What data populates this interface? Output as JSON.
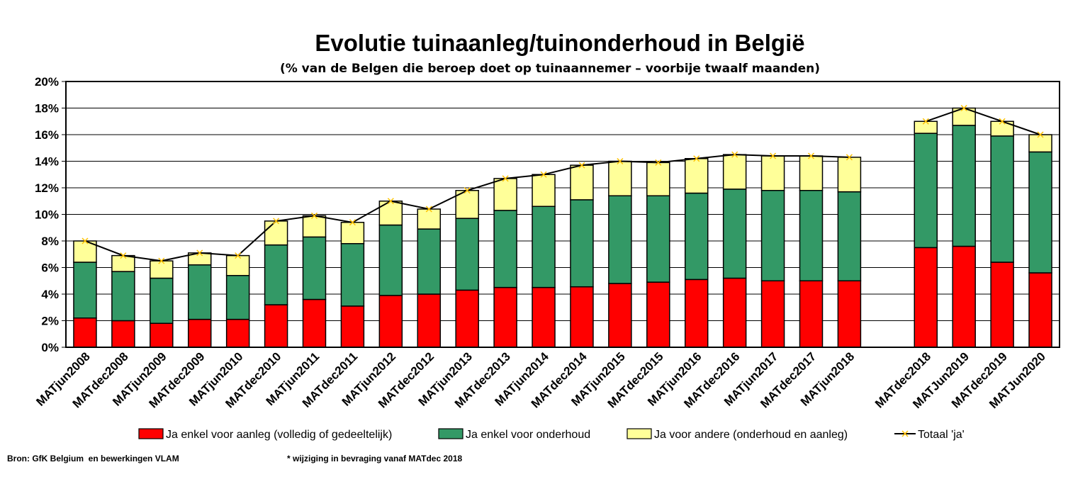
{
  "footnotes": {
    "source": "Bron: GfK Belgium  en bewerkingen VLAM",
    "note": "* wijziging in bevraging vanaf MATdec 2018"
  },
  "chart_data": {
    "type": "bar",
    "stacked": true,
    "title": "Evolutie tuinaanleg/tuinonderhoud in België",
    "subtitle": "(% van de Belgen die beroep doet op tuinaannemer – voorbije twaalf maanden)",
    "xlabel": "",
    "ylabel": "",
    "ylim": [
      0,
      20
    ],
    "yticks": [
      "0%",
      "2%",
      "4%",
      "6%",
      "8%",
      "10%",
      "12%",
      "14%",
      "16%",
      "18%",
      "20%"
    ],
    "grid": true,
    "legend_position": "bottom",
    "categories": [
      "MATjun2008",
      "MATdec2008",
      "MATjun2009",
      "MATdec2009",
      "MATjun2010",
      "MATdec2010",
      "MATjun2011",
      "MATdec2011",
      "MATjun2012",
      "MATdec2012",
      "MATjun2013",
      "MATdec2013",
      "MATjun2014",
      "MATdec2014",
      "MATjun2015",
      "MATdec2015",
      "MATjun2016",
      "MATdec2016",
      "MATjun2017",
      "MATdec2017",
      "MATjun2018",
      "MATdec2018",
      "MATJun2019",
      "MATdec2019",
      "MATJun2020"
    ],
    "series": [
      {
        "name": "Ja enkel voor aanleg (volledig of gedeeltelijk)",
        "color": "#ff0000",
        "values": [
          2.2,
          2.0,
          1.8,
          2.1,
          2.1,
          3.2,
          3.6,
          3.1,
          3.9,
          4.0,
          4.3,
          4.5,
          4.5,
          4.55,
          4.8,
          4.9,
          5.1,
          5.2,
          5.0,
          5.0,
          5.0,
          7.5,
          7.6,
          6.4,
          5.6
        ]
      },
      {
        "name": "Ja enkel voor onderhoud",
        "color": "#339966",
        "values": [
          4.2,
          3.7,
          3.4,
          4.1,
          3.3,
          4.5,
          4.7,
          4.7,
          5.3,
          4.9,
          5.4,
          5.8,
          6.1,
          6.55,
          6.6,
          6.5,
          6.5,
          6.7,
          6.8,
          6.8,
          6.7,
          8.6,
          9.1,
          9.5,
          9.1
        ]
      },
      {
        "name": "Ja voor andere (onderhoud en aanleg)",
        "color": "#ffff99",
        "values": [
          1.6,
          1.2,
          1.3,
          0.9,
          1.5,
          1.8,
          1.6,
          1.6,
          1.8,
          1.5,
          2.1,
          2.4,
          2.4,
          2.6,
          2.6,
          2.5,
          2.6,
          2.6,
          2.6,
          2.6,
          2.6,
          0.9,
          1.3,
          1.1,
          1.3
        ]
      }
    ],
    "line_series": {
      "name": "Totaal 'ja'",
      "color": "#000000",
      "marker_color": "#ffc000",
      "segments": [
        [
          0,
          20
        ],
        [
          21,
          24
        ]
      ],
      "values": [
        8.0,
        6.9,
        6.5,
        7.1,
        6.9,
        9.5,
        9.9,
        9.4,
        11.0,
        10.4,
        11.8,
        12.7,
        13.0,
        13.7,
        14.0,
        13.9,
        14.2,
        14.5,
        14.4,
        14.4,
        14.3,
        17.0,
        18.0,
        17.0,
        16.0
      ]
    }
  }
}
